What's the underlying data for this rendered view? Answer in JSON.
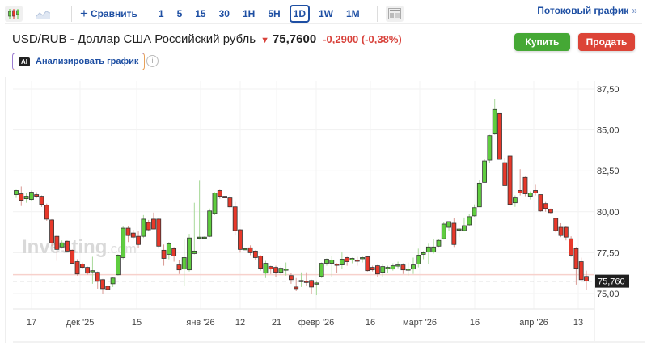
{
  "toolbar": {
    "chart_type_icons": [
      "candlestick-icon",
      "area-chart-icon"
    ],
    "compare_label": "Сравнить",
    "timeframes": [
      "1",
      "5",
      "15",
      "30",
      "1H",
      "5H",
      "1D",
      "1W",
      "1M"
    ],
    "active_timeframe": "1D",
    "layout_icon": "layout-icon",
    "streaming_label": "Потоковый график",
    "streaming_chevron": "»"
  },
  "header": {
    "title": "USD/RUB - Доллар США Российский рубль",
    "direction_icon": "▼",
    "price": "75,7600",
    "change": "-0,2900 (-0,38%)",
    "analyze_badge": "AI",
    "analyze_label": "Анализировать график",
    "info_icon": "i",
    "buy_label": "Купить",
    "sell_label": "Продать"
  },
  "colors": {
    "up": "#5fcd3f",
    "down": "#e8382a",
    "accent": "#1e4fa3",
    "buy": "#45a835",
    "sell": "#dc4437"
  },
  "chart_data": {
    "type": "candlestick",
    "title": "USD/RUB 1D",
    "watermark": "Investing.com",
    "ylim": [
      74.4,
      87.9
    ],
    "y_ticks": [
      "87,50",
      "85,00",
      "82,50",
      "80,00",
      "77,50",
      "75,00"
    ],
    "x_ticks": [
      "17",
      "дек '25",
      "15",
      "янв '26",
      "12",
      "21",
      "февр '26",
      "16",
      "март '26",
      "16",
      "апр '26",
      "13"
    ],
    "last_price_label": "75,760",
    "last_price": 75.76,
    "grid": true,
    "candles": [
      {
        "o": 81.05,
        "h": 81.35,
        "l": 80.85,
        "c": 81.3
      },
      {
        "o": 81.1,
        "h": 81.55,
        "l": 80.35,
        "c": 80.7
      },
      {
        "o": 80.8,
        "h": 81.15,
        "l": 80.55,
        "c": 80.95
      },
      {
        "o": 80.75,
        "h": 81.3,
        "l": 80.65,
        "c": 81.2
      },
      {
        "o": 81.05,
        "h": 81.2,
        "l": 80.85,
        "c": 80.95
      },
      {
        "o": 80.95,
        "h": 81.0,
        "l": 80.3,
        "c": 80.45
      },
      {
        "o": 80.4,
        "h": 80.5,
        "l": 79.45,
        "c": 79.55
      },
      {
        "o": 79.5,
        "h": 79.55,
        "l": 77.9,
        "c": 78.1
      },
      {
        "o": 78.5,
        "h": 78.6,
        "l": 77.0,
        "c": 77.7
      },
      {
        "o": 77.85,
        "h": 78.25,
        "l": 77.75,
        "c": 78.1
      },
      {
        "o": 78.2,
        "h": 78.25,
        "l": 77.55,
        "c": 77.6
      },
      {
        "o": 77.65,
        "h": 77.7,
        "l": 76.8,
        "c": 76.85
      },
      {
        "o": 76.95,
        "h": 77.1,
        "l": 76.1,
        "c": 76.2
      },
      {
        "o": 76.8,
        "h": 76.9,
        "l": 76.5,
        "c": 76.6
      },
      {
        "o": 76.6,
        "h": 76.65,
        "l": 76.15,
        "c": 76.25
      },
      {
        "o": 76.4,
        "h": 77.25,
        "l": 75.6,
        "c": 76.4
      },
      {
        "o": 76.3,
        "h": 76.35,
        "l": 75.3,
        "c": 75.75
      },
      {
        "o": 75.85,
        "h": 75.9,
        "l": 74.95,
        "c": 75.3
      },
      {
        "o": 75.45,
        "h": 75.5,
        "l": 75.2,
        "c": 75.25
      },
      {
        "o": 75.6,
        "h": 76.0,
        "l": 75.4,
        "c": 75.95
      },
      {
        "o": 76.15,
        "h": 77.4,
        "l": 76.1,
        "c": 77.35
      },
      {
        "o": 77.2,
        "h": 79.1,
        "l": 77.1,
        "c": 79.0
      },
      {
        "o": 79.0,
        "h": 79.1,
        "l": 78.15,
        "c": 78.55
      },
      {
        "o": 78.7,
        "h": 78.9,
        "l": 78.3,
        "c": 78.45
      },
      {
        "o": 78.5,
        "h": 78.8,
        "l": 77.8,
        "c": 78.0
      },
      {
        "o": 78.5,
        "h": 79.8,
        "l": 78.4,
        "c": 79.55
      },
      {
        "o": 79.35,
        "h": 79.5,
        "l": 78.8,
        "c": 78.9
      },
      {
        "o": 79.55,
        "h": 79.95,
        "l": 78.95,
        "c": 78.95
      },
      {
        "o": 79.55,
        "h": 79.6,
        "l": 77.75,
        "c": 77.9
      },
      {
        "o": 77.65,
        "h": 78.0,
        "l": 76.7,
        "c": 77.15
      },
      {
        "o": 77.4,
        "h": 78.15,
        "l": 77.1,
        "c": 78.05
      },
      {
        "o": 77.75,
        "h": 77.85,
        "l": 76.95,
        "c": 77.3
      },
      {
        "o": 76.75,
        "h": 77.05,
        "l": 76.2,
        "c": 76.45
      },
      {
        "o": 76.5,
        "h": 78.3,
        "l": 75.45,
        "c": 77.2
      },
      {
        "o": 76.45,
        "h": 78.65,
        "l": 76.35,
        "c": 78.4
      },
      {
        "o": 77.45,
        "h": 80.55,
        "l": 77.4,
        "c": 77.6
      },
      {
        "o": 78.4,
        "h": 81.9,
        "l": 78.3,
        "c": 78.45
      },
      {
        "o": 78.45,
        "h": 78.5,
        "l": 78.45,
        "c": 78.45
      },
      {
        "o": 78.5,
        "h": 80.2,
        "l": 78.45,
        "c": 80.05
      },
      {
        "o": 79.9,
        "h": 81.2,
        "l": 79.8,
        "c": 81.15
      },
      {
        "o": 81.3,
        "h": 81.35,
        "l": 80.8,
        "c": 80.95
      },
      {
        "o": 80.95,
        "h": 80.95,
        "l": 80.85,
        "c": 80.85
      },
      {
        "o": 80.85,
        "h": 81.0,
        "l": 80.2,
        "c": 80.3
      },
      {
        "o": 80.3,
        "h": 80.6,
        "l": 78.55,
        "c": 78.85
      },
      {
        "o": 78.9,
        "h": 78.95,
        "l": 77.5,
        "c": 77.7
      },
      {
        "o": 77.75,
        "h": 77.8,
        "l": 77.7,
        "c": 77.75
      },
      {
        "o": 77.8,
        "h": 77.95,
        "l": 77.35,
        "c": 77.5
      },
      {
        "o": 77.6,
        "h": 77.65,
        "l": 77.05,
        "c": 77.2
      },
      {
        "o": 77.3,
        "h": 77.35,
        "l": 76.4,
        "c": 76.55
      },
      {
        "o": 76.25,
        "h": 77.0,
        "l": 75.95,
        "c": 76.85
      },
      {
        "o": 76.65,
        "h": 76.7,
        "l": 76.2,
        "c": 76.5
      },
      {
        "o": 76.6,
        "h": 76.7,
        "l": 76.0,
        "c": 76.3
      },
      {
        "o": 76.3,
        "h": 76.65,
        "l": 76.15,
        "c": 76.55
      },
      {
        "o": 76.5,
        "h": 76.9,
        "l": 76.1,
        "c": 76.5
      },
      {
        "o": 76.1,
        "h": 76.25,
        "l": 75.6,
        "c": 75.85
      },
      {
        "o": 75.4,
        "h": 75.95,
        "l": 75.15,
        "c": 75.3
      },
      {
        "o": 75.75,
        "h": 76.3,
        "l": 75.4,
        "c": 75.8
      },
      {
        "o": 75.75,
        "h": 76.3,
        "l": 75.5,
        "c": 75.7
      },
      {
        "o": 75.8,
        "h": 75.85,
        "l": 75.0,
        "c": 75.4
      },
      {
        "o": 75.65,
        "h": 75.8,
        "l": 74.9,
        "c": 75.65
      },
      {
        "o": 76.05,
        "h": 76.9,
        "l": 75.95,
        "c": 76.85
      },
      {
        "o": 76.85,
        "h": 77.15,
        "l": 76.7,
        "c": 77.1
      },
      {
        "o": 76.85,
        "h": 77.3,
        "l": 76.0,
        "c": 77.05
      },
      {
        "o": 76.8,
        "h": 76.85,
        "l": 76.25,
        "c": 76.75
      },
      {
        "o": 76.75,
        "h": 77.55,
        "l": 76.5,
        "c": 77.1
      },
      {
        "o": 77.2,
        "h": 77.25,
        "l": 76.7,
        "c": 76.95
      },
      {
        "o": 77.05,
        "h": 77.2,
        "l": 76.85,
        "c": 77.15
      },
      {
        "o": 77.05,
        "h": 77.25,
        "l": 76.7,
        "c": 77.0
      },
      {
        "o": 77.15,
        "h": 77.3,
        "l": 76.9,
        "c": 77.2
      },
      {
        "o": 77.25,
        "h": 77.3,
        "l": 76.35,
        "c": 76.4
      },
      {
        "o": 76.6,
        "h": 76.7,
        "l": 76.35,
        "c": 76.45
      },
      {
        "o": 76.7,
        "h": 76.75,
        "l": 76.0,
        "c": 76.2
      },
      {
        "o": 76.3,
        "h": 76.8,
        "l": 76.0,
        "c": 76.65
      },
      {
        "o": 76.6,
        "h": 76.7,
        "l": 76.25,
        "c": 76.6
      },
      {
        "o": 76.5,
        "h": 76.85,
        "l": 76.4,
        "c": 76.7
      },
      {
        "o": 76.75,
        "h": 76.95,
        "l": 76.55,
        "c": 76.75
      },
      {
        "o": 76.75,
        "h": 76.85,
        "l": 76.2,
        "c": 76.45
      },
      {
        "o": 76.45,
        "h": 76.9,
        "l": 76.1,
        "c": 76.5
      },
      {
        "o": 76.5,
        "h": 77.2,
        "l": 76.2,
        "c": 76.75
      },
      {
        "o": 76.8,
        "h": 77.75,
        "l": 76.6,
        "c": 77.35
      },
      {
        "o": 77.4,
        "h": 77.6,
        "l": 77.1,
        "c": 77.5
      },
      {
        "o": 77.55,
        "h": 78.05,
        "l": 76.8,
        "c": 77.85
      },
      {
        "o": 77.55,
        "h": 78.35,
        "l": 77.45,
        "c": 77.85
      },
      {
        "o": 77.9,
        "h": 78.35,
        "l": 77.85,
        "c": 78.25
      },
      {
        "o": 78.35,
        "h": 79.35,
        "l": 78.3,
        "c": 79.25
      },
      {
        "o": 79.05,
        "h": 79.35,
        "l": 78.85,
        "c": 79.4
      },
      {
        "o": 79.3,
        "h": 79.6,
        "l": 77.85,
        "c": 78.0
      },
      {
        "o": 78.9,
        "h": 79.0,
        "l": 78.45,
        "c": 78.95
      },
      {
        "o": 78.85,
        "h": 79.65,
        "l": 78.8,
        "c": 79.15
      },
      {
        "o": 79.2,
        "h": 79.85,
        "l": 79.1,
        "c": 79.7
      },
      {
        "o": 79.75,
        "h": 80.45,
        "l": 79.7,
        "c": 80.25
      },
      {
        "o": 80.3,
        "h": 81.95,
        "l": 80.3,
        "c": 81.75
      },
      {
        "o": 81.8,
        "h": 83.2,
        "l": 81.8,
        "c": 83.1
      },
      {
        "o": 83.15,
        "h": 84.7,
        "l": 83.0,
        "c": 84.65
      },
      {
        "o": 84.75,
        "h": 86.9,
        "l": 84.7,
        "c": 86.25
      },
      {
        "o": 86.0,
        "h": 86.0,
        "l": 83.2,
        "c": 83.2
      },
      {
        "o": 83.0,
        "h": 83.3,
        "l": 81.6,
        "c": 81.6
      },
      {
        "o": 83.4,
        "h": 83.4,
        "l": 80.35,
        "c": 80.45
      },
      {
        "o": 80.55,
        "h": 81.0,
        "l": 80.3,
        "c": 80.85
      },
      {
        "o": 81.3,
        "h": 82.6,
        "l": 81.0,
        "c": 81.15
      },
      {
        "o": 82.1,
        "h": 82.15,
        "l": 80.95,
        "c": 81.1
      },
      {
        "o": 80.95,
        "h": 81.25,
        "l": 80.75,
        "c": 81.15
      },
      {
        "o": 81.3,
        "h": 81.65,
        "l": 81.0,
        "c": 81.15
      },
      {
        "o": 81.05,
        "h": 81.05,
        "l": 80.0,
        "c": 80.05
      },
      {
        "o": 80.5,
        "h": 80.6,
        "l": 80.0,
        "c": 80.2
      },
      {
        "o": 80.15,
        "h": 80.2,
        "l": 79.85,
        "c": 79.95
      },
      {
        "o": 79.6,
        "h": 79.6,
        "l": 78.75,
        "c": 78.85
      },
      {
        "o": 79.05,
        "h": 79.3,
        "l": 78.45,
        "c": 78.55
      },
      {
        "o": 79.05,
        "h": 79.1,
        "l": 78.25,
        "c": 78.45
      },
      {
        "o": 78.35,
        "h": 78.5,
        "l": 77.25,
        "c": 77.35
      },
      {
        "o": 77.75,
        "h": 77.85,
        "l": 75.55,
        "c": 76.55
      },
      {
        "o": 76.95,
        "h": 77.2,
        "l": 75.85,
        "c": 75.85
      },
      {
        "o": 76.05,
        "h": 76.4,
        "l": 75.25,
        "c": 75.76
      }
    ]
  }
}
